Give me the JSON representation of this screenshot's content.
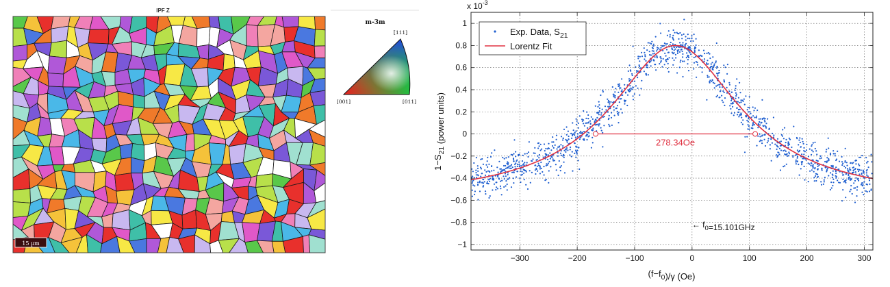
{
  "ebsd": {
    "map_title": "IPF Z",
    "scale_bar_label": "15 µm",
    "key_title": "m-3m",
    "key_corners": {
      "top": "[̄111]",
      "left": "[001]",
      "right": "[011]"
    },
    "grain_palette": [
      "#e8302c",
      "#f07a2a",
      "#f5c23a",
      "#f7e845",
      "#b8e04a",
      "#59c84a",
      "#3fbfa8",
      "#4ab8e8",
      "#4a78e0",
      "#7a58d8",
      "#b058d8",
      "#e058c8",
      "#f080b8",
      "#f4a6a0",
      "#c8b8f0",
      "#a0e0d0",
      "#ffffff"
    ]
  },
  "chart_data": {
    "type": "scatter",
    "title": "",
    "xlabel": "(f−f0)/γ (Oe)",
    "ylabel": "1−S21 (power units)",
    "y_multiplier": "x 10-3",
    "xlim": [
      -385,
      315
    ],
    "ylim": [
      -1.05,
      1.1
    ],
    "x_ticks": [
      -300,
      -200,
      -100,
      0,
      100,
      200,
      300
    ],
    "y_ticks": [
      -1,
      -0.8,
      -0.6,
      -0.4,
      -0.2,
      0,
      0.2,
      0.4,
      0.6,
      0.8,
      1
    ],
    "x_tick_labels": [
      "−300",
      "−200",
      "−100",
      "0",
      "100",
      "200",
      "300"
    ],
    "y_tick_labels": [
      "−1",
      "−0.8",
      "−0.6",
      "−0.4",
      "−0.2",
      "0",
      "0.2",
      "0.4",
      "0.6",
      "0.8",
      "1"
    ],
    "grid": true,
    "legend_placement": "top-left",
    "series": [
      {
        "name": "Exp. Data, S21",
        "kind": "scatter",
        "color": "#1f5fd0",
        "noise_std": 0.09
      },
      {
        "name": "Lorentz Fit",
        "kind": "lorentzian",
        "color": "#e03040",
        "center": -29,
        "hwhm": 139,
        "amplitude": 1.4,
        "offset": -0.6
      }
    ],
    "fwhm_annotation": {
      "label": "278.34Oe",
      "x1": -168,
      "x2": 110,
      "y": 0,
      "color": "#e03040"
    },
    "f0_annotation": {
      "label": "← f0=15.101GHz",
      "x": 0,
      "y": -0.82
    }
  }
}
